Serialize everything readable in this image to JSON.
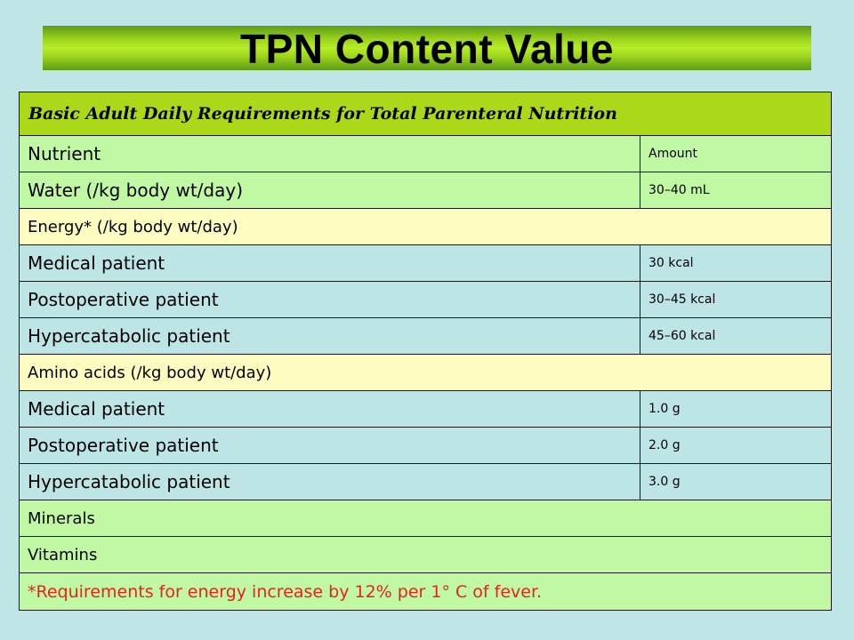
{
  "title": "TPN Content Value",
  "table": {
    "caption": "Basic Adult Daily Requirements for Total Parenteral Nutrition",
    "header": {
      "nutrient": "Nutrient",
      "amount": "Amount"
    },
    "water": {
      "label": "Water (/kg body wt/day)",
      "amount": "30–40 mL"
    },
    "energy": {
      "heading": "Energy* (/kg body wt/day)",
      "rows": [
        {
          "label": "Medical patient",
          "amount": "30 kcal"
        },
        {
          "label": "Postoperative patient",
          "amount": "30–45 kcal"
        },
        {
          "label": "Hypercatabolic patient",
          "amount": "45–60 kcal"
        }
      ]
    },
    "amino": {
      "heading": "Amino acids (/kg body wt/day)",
      "rows": [
        {
          "label": "Medical patient",
          "amount": "1.0 g"
        },
        {
          "label": "Postoperative patient",
          "amount": "2.0 g"
        },
        {
          "label": "Hypercatabolic patient",
          "amount": "3.0 g"
        }
      ]
    },
    "minerals": "Minerals",
    "vitamins": "Vitamins",
    "footnote": "*Requirements for energy increase by 12% per 1° C of fever."
  },
  "colors": {
    "background": "#bfe5e6",
    "title_bar": "#9ad41c",
    "caption_row": "#acd81a",
    "green_row": "#c0f8a4",
    "cyan_row": "#bde5e6",
    "yellow_row": "#fcfcc0",
    "footnote_text": "#e8231a"
  }
}
